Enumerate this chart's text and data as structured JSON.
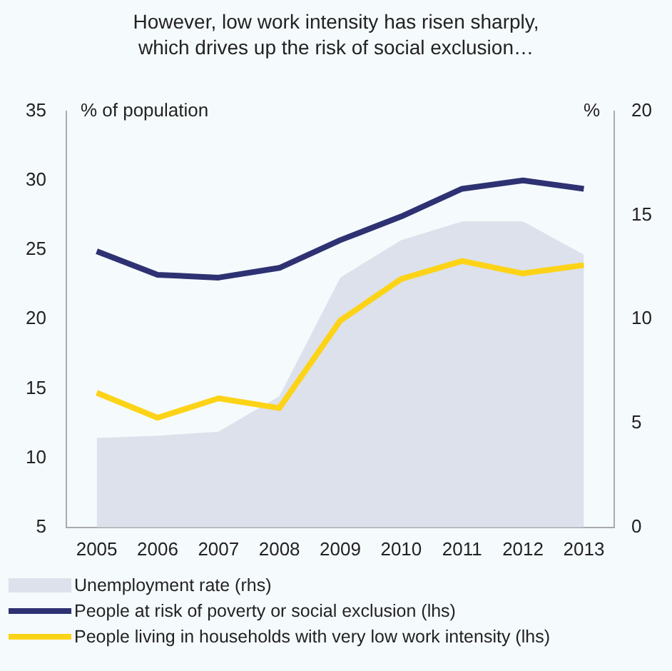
{
  "chart_data": {
    "type": "line",
    "title": "However, low work intensity has risen sharply,\nwhich drives up the risk of social exclusion…",
    "ylabel": "% of population",
    "y2label": "%",
    "categories": [
      "2005",
      "2006",
      "2007",
      "2008",
      "2009",
      "2010",
      "2011",
      "2012",
      "2013"
    ],
    "series": [
      {
        "name": "Unemployment rate (rhs)",
        "type": "area",
        "axis": "y2",
        "color": "#dce1eb",
        "values": [
          4.3,
          4.4,
          4.6,
          6.3,
          12.0,
          13.8,
          14.7,
          14.7,
          13.1
        ]
      },
      {
        "name": "People at risk of poverty or social exclusion (lhs)",
        "color": "#2e3172",
        "values": [
          24.9,
          23.2,
          23.0,
          23.7,
          25.7,
          27.4,
          29.4,
          30.0,
          29.4
        ]
      },
      {
        "name": "People living in households with very low work intensity (lhs)",
        "color": "#fdd317",
        "values": [
          14.7,
          12.9,
          14.3,
          13.6,
          19.9,
          22.9,
          24.2,
          23.3,
          23.9
        ]
      }
    ],
    "ylim": [
      5,
      35
    ],
    "yticks": [
      5,
      10,
      15,
      20,
      25,
      30,
      35
    ],
    "y2lim": [
      0,
      20
    ],
    "y2ticks": [
      0,
      5,
      10,
      15,
      20
    ],
    "grid": false,
    "legend": "bottom",
    "marker": "none"
  }
}
